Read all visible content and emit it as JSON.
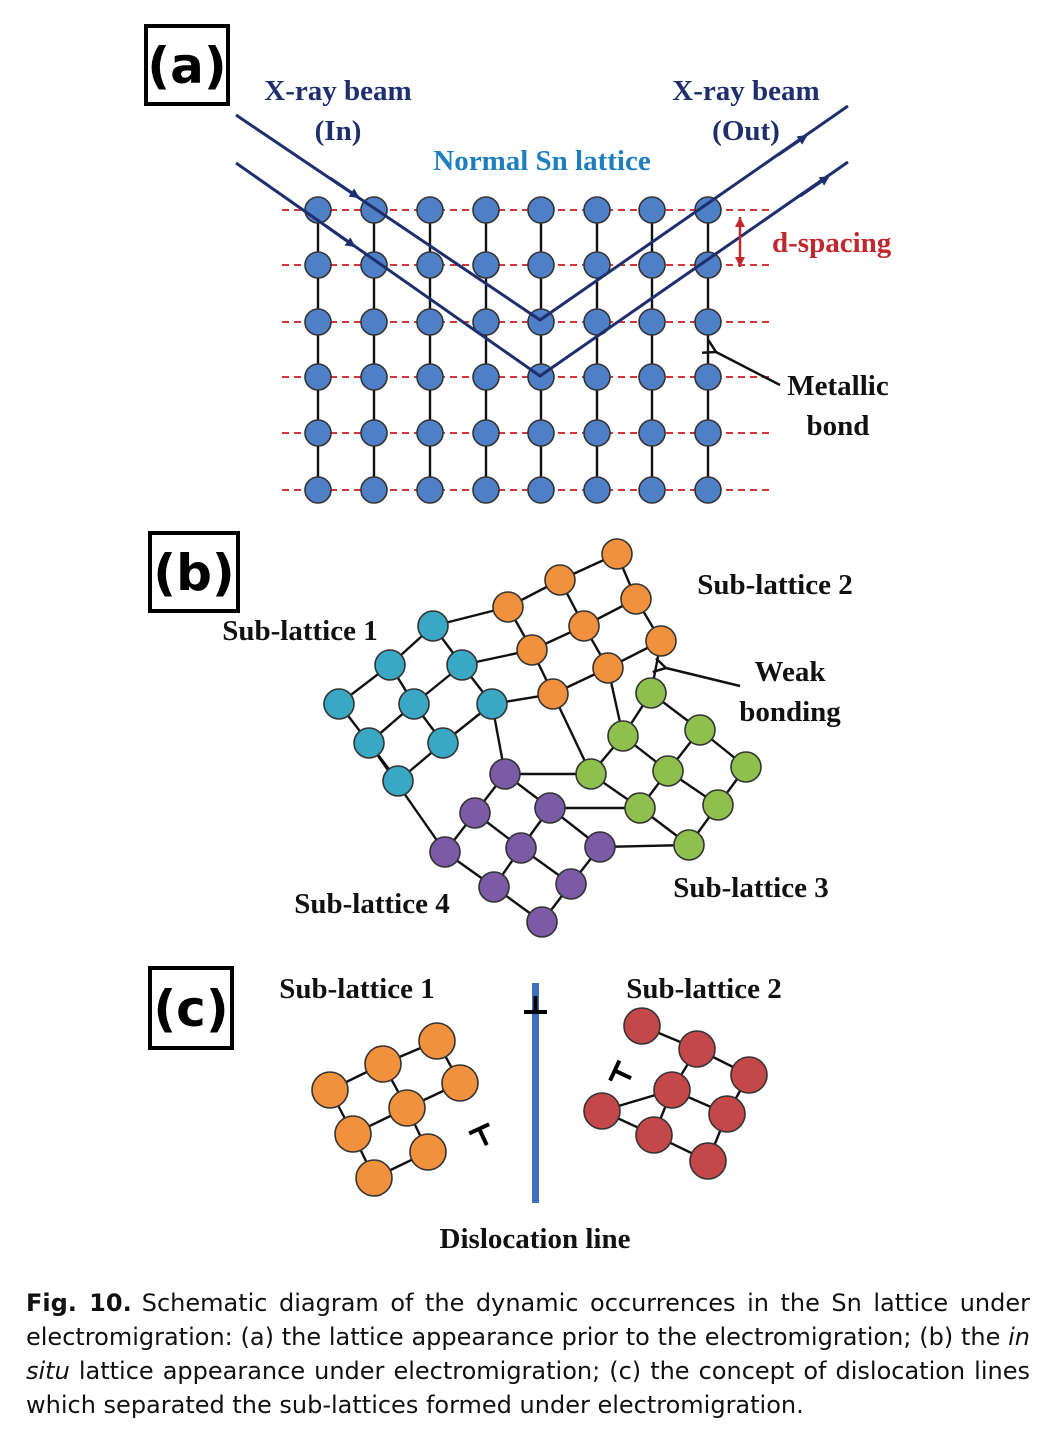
{
  "panels": {
    "a": {
      "tag": "(a)",
      "beam_in_line1": "X-ray beam",
      "beam_in_line2": "(In)",
      "beam_out_line1": "X-ray beam",
      "beam_out_line2": "(Out)",
      "title": "Normal Sn lattice",
      "d_spacing": "d-spacing",
      "metallic_line1": "Metallic",
      "metallic_line2": "bond"
    },
    "b": {
      "tag": "(b)",
      "sub1": "Sub-lattice 1",
      "sub2": "Sub-lattice 2",
      "sub3": "Sub-lattice 3",
      "sub4": "Sub-lattice 4",
      "weak_line1": "Weak",
      "weak_line2": "bonding"
    },
    "c": {
      "tag": "(c)",
      "sub1": "Sub-lattice 1",
      "sub2": "Sub-lattice 2",
      "dislocation": "Dislocation line"
    }
  },
  "colors": {
    "atom_blue": "#4f7fc6",
    "atom_cyan": "#3aa7c4",
    "atom_orange": "#f1913d",
    "atom_green": "#8fbf4d",
    "atom_purple": "#7b5aa6",
    "atom_red": "#c4484a",
    "beam": "#1f2f6e",
    "plane_dash": "#d2353a",
    "dislocation_line": "#3e6fbd"
  },
  "caption": {
    "label": "Fig. 10.",
    "part1": "Schematic diagram of the dynamic occurrences in the Sn lattice under electromigration: (a) the lattice appearance prior to the electromigration; (b) the ",
    "italic": "in situ",
    "part2": " lattice appearance under electromigration; (c) the concept of dislocation lines which separated the sub-lattices formed under electromigration."
  }
}
